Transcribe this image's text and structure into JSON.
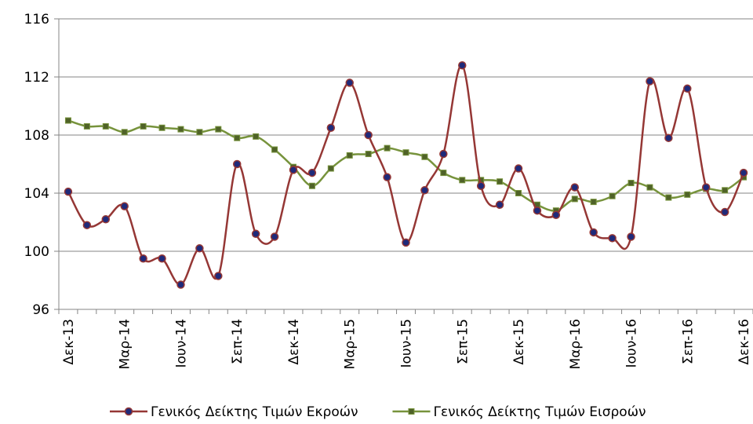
{
  "chart_data": {
    "type": "line",
    "categories": [
      "Δεκ-13",
      null,
      null,
      "Μαρ-14",
      null,
      null,
      "Ιουν-14",
      null,
      null,
      "Σεπ-14",
      null,
      null,
      "Δεκ-14",
      null,
      null,
      "Μαρ-15",
      null,
      null,
      "Ιουν-15",
      null,
      null,
      "Σεπ-15",
      null,
      null,
      "Δεκ-15",
      null,
      null,
      "Μαρ-16",
      null,
      null,
      "Ιουν-16",
      null,
      null,
      "Σεπ-16",
      null,
      null,
      "Δεκ-16"
    ],
    "series": [
      {
        "name": "Γενικός Δείκτης Τιμών Εκροών",
        "color": "#953735",
        "marker_color": "#1f2a7a",
        "marker": "circle",
        "values": [
          104.1,
          101.8,
          102.2,
          103.1,
          99.5,
          99.5,
          97.7,
          100.2,
          98.3,
          106.0,
          101.2,
          101.0,
          105.6,
          105.4,
          108.5,
          111.6,
          108.0,
          105.1,
          100.6,
          104.2,
          106.7,
          112.8,
          104.5,
          103.2,
          105.7,
          102.8,
          102.5,
          104.4,
          101.3,
          100.9,
          101.0,
          111.7,
          107.8,
          111.2,
          104.4,
          102.7,
          105.4
        ]
      },
      {
        "name": "Γενικός Δείκτης Τιμών Εισροών",
        "color": "#77933c",
        "marker_color": "#4f6228",
        "marker": "square",
        "values": [
          109.0,
          108.6,
          108.6,
          108.2,
          108.6,
          108.5,
          108.4,
          108.2,
          108.4,
          107.8,
          107.9,
          107.0,
          105.8,
          104.5,
          105.7,
          106.6,
          106.7,
          107.1,
          106.8,
          106.5,
          105.4,
          104.9,
          104.9,
          104.8,
          104.0,
          103.2,
          102.8,
          103.6,
          103.4,
          103.8,
          104.7,
          104.4,
          103.7,
          103.9,
          104.3,
          104.2,
          105.1
        ]
      }
    ],
    "ylim": [
      96,
      116
    ],
    "yticks": [
      96,
      100,
      104,
      108,
      112,
      116
    ],
    "grid": true,
    "legend": "bottom"
  }
}
